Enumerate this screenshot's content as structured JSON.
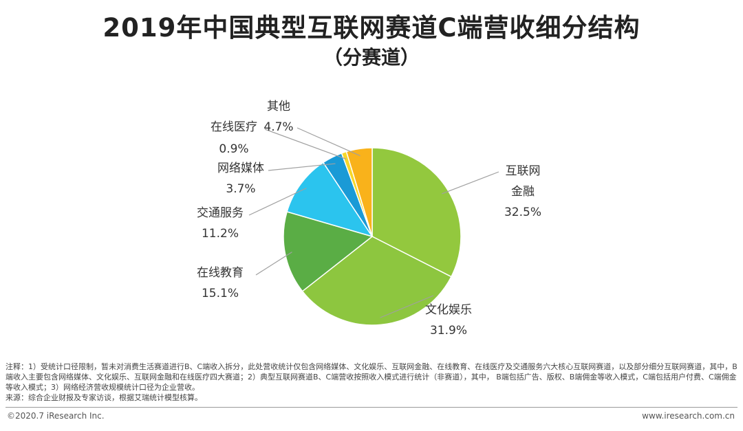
{
  "title": "2019年中国典型互联网赛道C端营收细分结构",
  "subtitle": "（分赛道）",
  "chart_data": {
    "type": "pie",
    "slices": [
      {
        "label": [
          "互联网",
          "金融"
        ],
        "value": 32.5,
        "value_label": "32.5%",
        "color": "#93c83e"
      },
      {
        "label": [
          "文化娱乐"
        ],
        "value": 31.9,
        "value_label": "31.9%",
        "color": "#8dc63f"
      },
      {
        "label": [
          "在线教育"
        ],
        "value": 15.1,
        "value_label": "15.1%",
        "color": "#5aad45"
      },
      {
        "label": [
          "交通服务"
        ],
        "value": 11.2,
        "value_label": "11.2%",
        "color": "#2bc4ee"
      },
      {
        "label": [
          "网络媒体"
        ],
        "value": 3.7,
        "value_label": "3.7%",
        "color": "#1a9ad6"
      },
      {
        "label": [
          "在线医疗"
        ],
        "value": 0.9,
        "value_label": "0.9%",
        "color": "#f7d72a"
      },
      {
        "label": [
          "其他"
        ],
        "value": 4.7,
        "value_label": "4.7%",
        "color": "#f9b21b"
      }
    ],
    "start_angle_deg": 0,
    "direction": "clockwise"
  },
  "notes": {
    "line1": "注释：1）受统计口径限制，暂未对消费生活赛道进行B、C端收入拆分，此处营收统计仅包含网络媒体、文化娱乐、互联网金融、在线教育、在线医疗及交通服务六大核心互联网赛道，以及部分细分互联网赛道，其中，B端收入主要包含网络媒体、文化娱乐、互联网金融和在线医疗四大赛道；2）典型互联网赛道B、C端营收按照收入模式进行统计（非赛道），其中， B端包括广告、版权、B端佣金等收入模式，C端包括用户付费、C端佣金等收入模式；3）网络经济营收规模统计口径为企业营收。",
    "source": "来源：综合企业财报及专家访谈，根据艾瑞统计模型核算。"
  },
  "footer": {
    "copyright": "©2020.7 iResearch Inc.",
    "website": "www.iresearch.com.cn"
  }
}
